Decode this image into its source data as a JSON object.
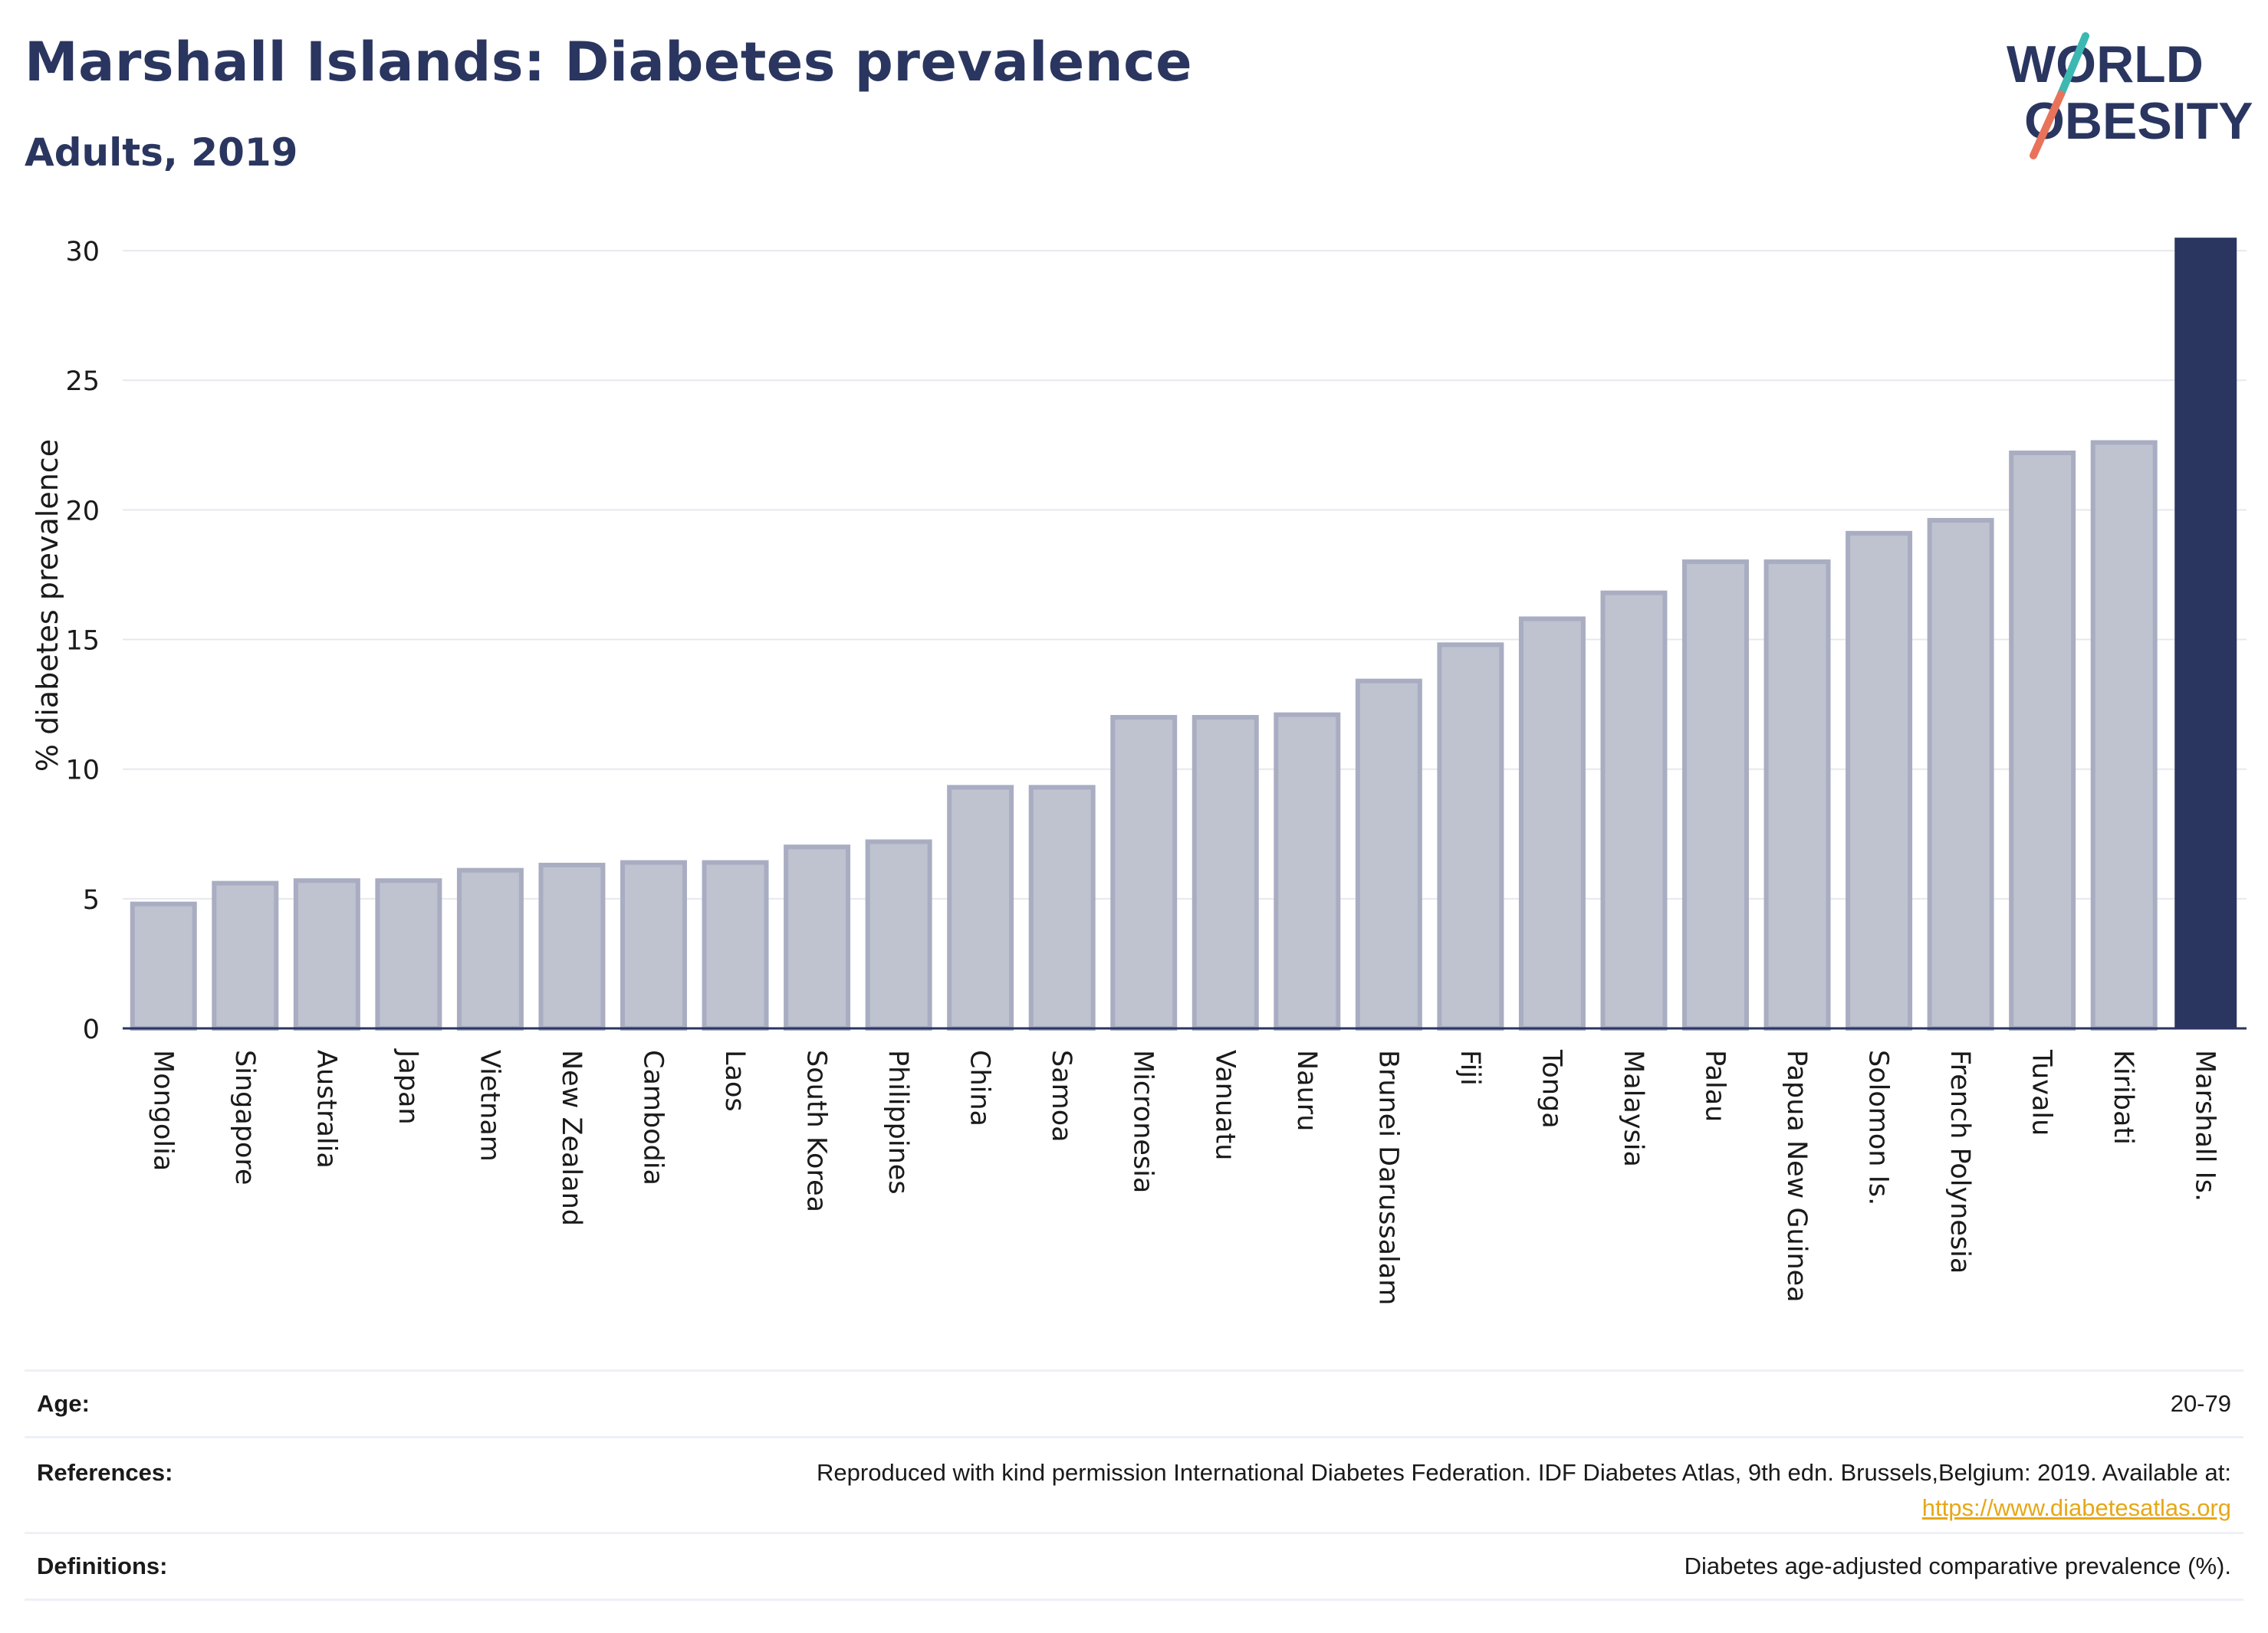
{
  "header": {
    "title": "Marshall Islands: Diabetes prevalence",
    "subtitle": "Adults, 2019"
  },
  "logo": {
    "line1": "WORLD",
    "line2": "OBESITY",
    "slash_colors": [
      "#3cb8b2",
      "#e8735a"
    ]
  },
  "chart_data": {
    "type": "bar",
    "ylabel": "% diabetes prevalence",
    "ylim": [
      0,
      30.8
    ],
    "yticks": [
      0,
      5,
      10,
      15,
      20,
      25,
      30
    ],
    "grid": true,
    "categories": [
      "Mongolia",
      "Singapore",
      "Australia",
      "Japan",
      "Vietnam",
      "New Zealand",
      "Cambodia",
      "Laos",
      "South Korea",
      "Philippines",
      "China",
      "Samoa",
      "Micronesia",
      "Vanuatu",
      "Nauru",
      "Brunei Darussalam",
      "Fiji",
      "Tonga",
      "Malaysia",
      "Palau",
      "Papua New Guinea",
      "Solomon Is.",
      "French Polynesia",
      "Tuvalu",
      "Kiribati",
      "Marshall Is."
    ],
    "values": [
      4.8,
      5.6,
      5.7,
      5.7,
      6.1,
      6.3,
      6.4,
      6.4,
      7.0,
      7.2,
      9.3,
      9.3,
      12.0,
      12.0,
      12.1,
      13.4,
      14.8,
      15.8,
      16.8,
      18.0,
      18.0,
      19.1,
      19.6,
      22.2,
      22.6,
      30.5
    ],
    "highlight": "Marshall Is.",
    "colors": {
      "bar_fill": "#bfc2cf",
      "bar_stroke": "#a9adc2",
      "highlight_fill": "#2a3660",
      "grid": "#e6e8ee",
      "axis": "#2a3660",
      "text": "#1a1a1a"
    }
  },
  "references": {
    "age_label": "Age:",
    "age_value": "20-79",
    "references_label": "References:",
    "references_text": "Reproduced with kind permission International Diabetes Federation. IDF Diabetes Atlas, 9th edn. Brussels,Belgium: 2019. Available at:",
    "references_link": "https://www.diabetesatlas.org",
    "definitions_label": "Definitions:",
    "definitions_value": "Diabetes age-adjusted comparative prevalence (%)."
  }
}
